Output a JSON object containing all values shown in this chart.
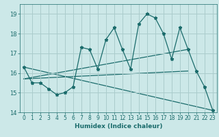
{
  "xlabel": "Humidex (Indice chaleur)",
  "bg_color": "#cce8e8",
  "grid_color": "#aacccc",
  "line_color": "#1a6b6b",
  "xlim": [
    -0.5,
    23.5
  ],
  "ylim": [
    14.0,
    19.5
  ],
  "yticks": [
    14,
    15,
    16,
    17,
    18,
    19
  ],
  "xticks": [
    0,
    1,
    2,
    3,
    4,
    5,
    6,
    7,
    8,
    9,
    10,
    11,
    12,
    13,
    14,
    15,
    16,
    17,
    18,
    19,
    20,
    21,
    22,
    23
  ],
  "line1_x": [
    0,
    1,
    2,
    3,
    4,
    5,
    6,
    7,
    8,
    9,
    10,
    11,
    12,
    13,
    14,
    15,
    16,
    17,
    18,
    19,
    20,
    21,
    22,
    23
  ],
  "line1_y": [
    16.3,
    15.5,
    15.5,
    15.2,
    14.9,
    15.0,
    15.3,
    17.3,
    17.2,
    16.2,
    17.7,
    18.3,
    17.2,
    16.2,
    18.5,
    19.0,
    18.8,
    18.0,
    16.7,
    18.3,
    17.2,
    16.1,
    15.3,
    14.1
  ],
  "line2_x": [
    0,
    20
  ],
  "line2_y": [
    15.7,
    16.1
  ],
  "line3_x": [
    0,
    20
  ],
  "line3_y": [
    15.7,
    17.2
  ],
  "line4_x": [
    0,
    23
  ],
  "line4_y": [
    16.3,
    14.1
  ]
}
